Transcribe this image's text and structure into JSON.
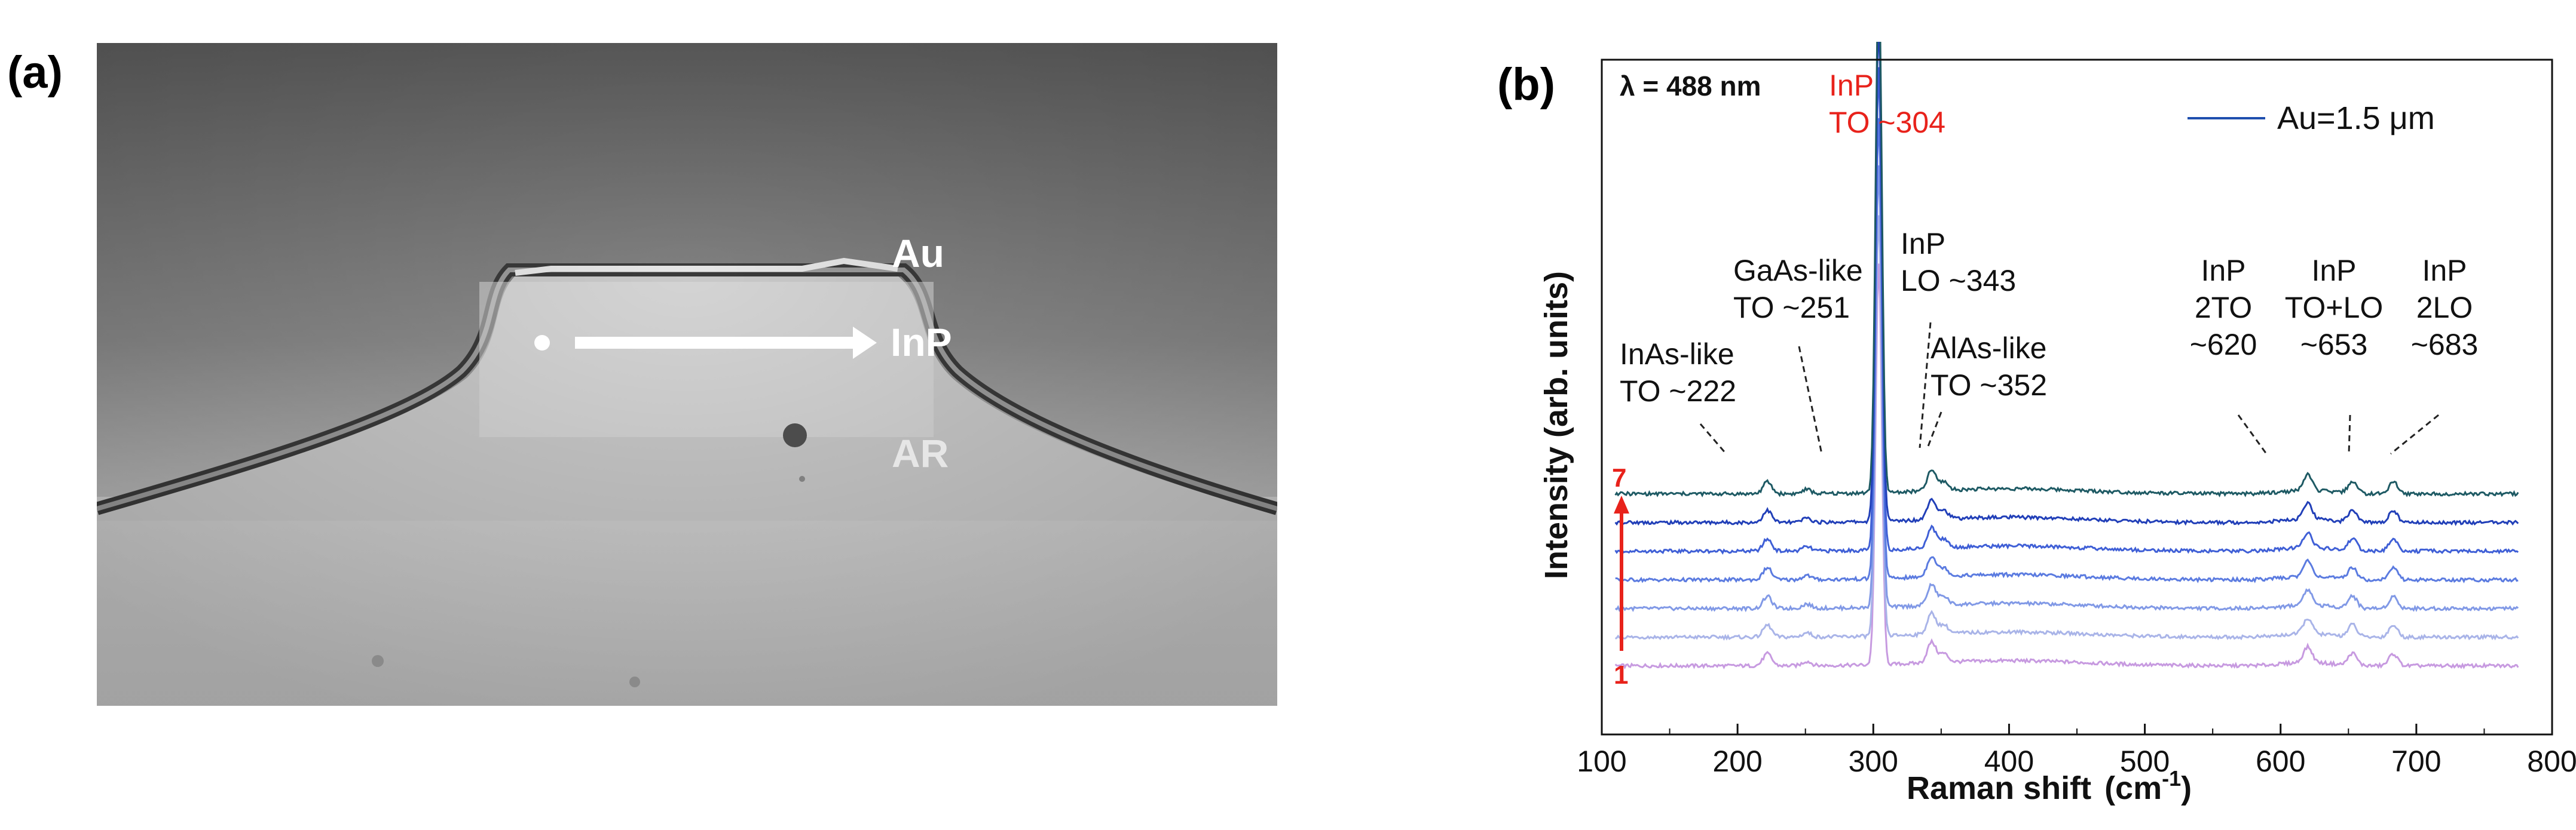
{
  "panel_a": {
    "label": "(a)",
    "labels": [
      "Au",
      "InP",
      "AR"
    ]
  },
  "panel_b": {
    "label": "(b)"
  },
  "chart_data": {
    "type": "line",
    "title": "",
    "xlabel": "Raman shift",
    "xlabel_unit": "(cm",
    "xlabel_unit_sup": "-1",
    "xlabel_unit_close": ")",
    "ylabel": "Intensity  (arb. units)",
    "xlim": [
      100,
      800
    ],
    "xticks": [
      "100",
      "200",
      "300",
      "400",
      "500",
      "600",
      "700",
      "800"
    ],
    "yticks": [],
    "excitation": "λ = 488 nm",
    "legend": {
      "name": "Au=1.5 μm",
      "color": "#1f4fae",
      "placement": "top-right"
    },
    "series_order": {
      "bottom": "1",
      "top": "7",
      "color": "#e8221b"
    },
    "series": [
      {
        "color": "#c79ae0",
        "offset": 0.0
      },
      {
        "color": "#a9b4e8",
        "offset": 1.0
      },
      {
        "color": "#8199e6",
        "offset": 2.0
      },
      {
        "color": "#5b7be0",
        "offset": 3.0
      },
      {
        "color": "#3f5fd6",
        "offset": 4.0
      },
      {
        "color": "#213fb8",
        "offset": 5.0
      },
      {
        "color": "#1e5a64",
        "offset": 6.0
      }
    ],
    "peaks": [
      {
        "x": 222,
        "height": 0.7
      },
      {
        "x": 251,
        "height": 0.25
      },
      {
        "x": 304,
        "height": 14.0
      },
      {
        "x": 343,
        "height": 1.2
      },
      {
        "x": 352,
        "height": 0.5
      },
      {
        "x": 620,
        "height": 0.9
      },
      {
        "x": 653,
        "height": 0.7
      },
      {
        "x": 683,
        "height": 0.7
      }
    ],
    "annotations": [
      {
        "lines": [
          "InAs-like",
          "TO ~222"
        ],
        "x": 222,
        "color": "#111111"
      },
      {
        "lines": [
          "GaAs-like",
          "TO ~251"
        ],
        "x": 251,
        "color": "#111111"
      },
      {
        "lines": [
          "InP",
          "TO ~304"
        ],
        "x": 304,
        "color": "#e8221b"
      },
      {
        "lines": [
          "InP",
          "LO ~343"
        ],
        "x": 343,
        "color": "#111111"
      },
      {
        "lines": [
          "AlAs-like",
          "TO ~352"
        ],
        "x": 352,
        "color": "#111111"
      },
      {
        "lines": [
          "InP",
          "2TO",
          "~620"
        ],
        "x": 620,
        "color": "#111111"
      },
      {
        "lines": [
          "InP",
          "TO+LO",
          "~653"
        ],
        "x": 653,
        "color": "#111111"
      },
      {
        "lines": [
          "InP",
          "2LO",
          "~683"
        ],
        "x": 683,
        "color": "#111111"
      }
    ]
  }
}
